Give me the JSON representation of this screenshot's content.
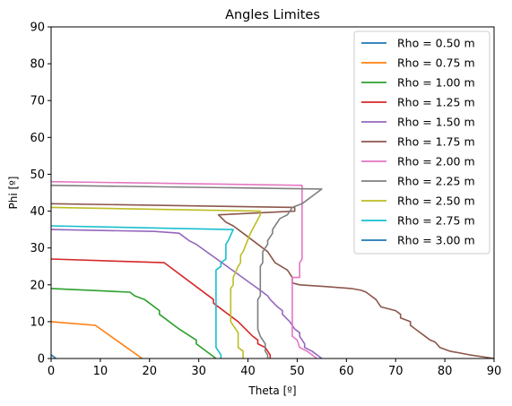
{
  "chart_data": {
    "type": "line",
    "title": "Angles Limites",
    "xlabel": "Theta [º]",
    "ylabel": "Phi [º]",
    "xlim": [
      0,
      90
    ],
    "ylim": [
      0,
      90
    ],
    "xticks": [
      0,
      10,
      20,
      30,
      40,
      50,
      60,
      70,
      80,
      90
    ],
    "yticks": [
      0,
      10,
      20,
      30,
      40,
      50,
      60,
      70,
      80,
      90
    ],
    "grid": false,
    "legend_position": "top-right",
    "series": [
      {
        "name": "Rho = 0.50 m",
        "color": "#1f77b4",
        "points": [
          [
            0,
            1
          ],
          [
            1,
            0
          ]
        ]
      },
      {
        "name": "Rho = 0.75 m",
        "color": "#ff7f0e",
        "points": [
          [
            0,
            10
          ],
          [
            9,
            9
          ],
          [
            18.5,
            0
          ]
        ]
      },
      {
        "name": "Rho = 1.00 m",
        "color": "#2ca02c",
        "points": [
          [
            0,
            19
          ],
          [
            16,
            18
          ],
          [
            17,
            17
          ],
          [
            19,
            16
          ],
          [
            22,
            13
          ],
          [
            22,
            12
          ],
          [
            26,
            8
          ],
          [
            29.5,
            5
          ],
          [
            29.5,
            4
          ],
          [
            33.5,
            0
          ]
        ]
      },
      {
        "name": "Rho = 1.25 m",
        "color": "#d62728",
        "points": [
          [
            0,
            27
          ],
          [
            23,
            26
          ],
          [
            33,
            16
          ],
          [
            33,
            15
          ],
          [
            37,
            11
          ],
          [
            38,
            10
          ],
          [
            41,
            6
          ],
          [
            42,
            5
          ],
          [
            42,
            4
          ],
          [
            43.5,
            3
          ],
          [
            44,
            2
          ],
          [
            44.5,
            1
          ],
          [
            44.5,
            0
          ]
        ]
      },
      {
        "name": "Rho = 1.50 m",
        "color": "#9467bd",
        "points": [
          [
            0,
            35
          ],
          [
            21,
            34.5
          ],
          [
            26,
            34
          ],
          [
            28,
            32
          ],
          [
            29.5,
            31
          ],
          [
            42,
            19
          ],
          [
            44,
            17
          ],
          [
            44.5,
            16
          ],
          [
            46,
            14
          ],
          [
            47,
            13
          ],
          [
            47,
            12
          ],
          [
            48.5,
            10
          ],
          [
            49.5,
            8
          ],
          [
            50.5,
            7
          ],
          [
            50.5,
            6
          ],
          [
            51.5,
            4
          ],
          [
            51.5,
            3
          ],
          [
            53,
            2
          ],
          [
            54,
            1
          ],
          [
            55,
            0
          ]
        ]
      },
      {
        "name": "Rho = 1.75 m",
        "color": "#8c564b",
        "points": [
          [
            0,
            42
          ],
          [
            49.5,
            41
          ],
          [
            49.5,
            40
          ],
          [
            34,
            39
          ],
          [
            35.5,
            37
          ],
          [
            37,
            36
          ],
          [
            39,
            34
          ],
          [
            40,
            33
          ],
          [
            43,
            30
          ],
          [
            44,
            29
          ],
          [
            45,
            27
          ],
          [
            45.5,
            26
          ],
          [
            48,
            24
          ],
          [
            49,
            22
          ],
          [
            49,
            20.5
          ],
          [
            50.5,
            20
          ],
          [
            56,
            19.5
          ],
          [
            61,
            19
          ],
          [
            63,
            18.5
          ],
          [
            64,
            18
          ],
          [
            65,
            17
          ],
          [
            66,
            16
          ],
          [
            67,
            14
          ],
          [
            70,
            13
          ],
          [
            71,
            12
          ],
          [
            71,
            11
          ],
          [
            73,
            10
          ],
          [
            73,
            9
          ],
          [
            74,
            8
          ],
          [
            76,
            6
          ],
          [
            77,
            5
          ],
          [
            78,
            4.5
          ],
          [
            79,
            3
          ],
          [
            81,
            2
          ],
          [
            85,
            1
          ],
          [
            90,
            0
          ]
        ]
      },
      {
        "name": "Rho = 2.00 m",
        "color": "#e377c2",
        "points": [
          [
            0,
            48
          ],
          [
            51,
            47
          ],
          [
            51,
            27
          ],
          [
            50.5,
            26
          ],
          [
            50.5,
            22
          ],
          [
            49,
            22
          ],
          [
            49,
            6
          ],
          [
            50,
            5
          ],
          [
            50.5,
            3
          ],
          [
            52,
            2
          ],
          [
            53,
            1
          ],
          [
            54,
            0
          ]
        ]
      },
      {
        "name": "Rho = 2.25 m",
        "color": "#7f7f7f",
        "points": [
          [
            0,
            47
          ],
          [
            55,
            46
          ],
          [
            51,
            42
          ],
          [
            49,
            41
          ],
          [
            48,
            39
          ],
          [
            46.5,
            38
          ],
          [
            45.5,
            36
          ],
          [
            45,
            35
          ],
          [
            45,
            34
          ],
          [
            44,
            32
          ],
          [
            44,
            31
          ],
          [
            43,
            29
          ],
          [
            43,
            26
          ],
          [
            42.5,
            25
          ],
          [
            42.5,
            17
          ],
          [
            42,
            16
          ],
          [
            42,
            8
          ],
          [
            42.5,
            6
          ],
          [
            43.5,
            4
          ],
          [
            43.5,
            2
          ],
          [
            44,
            1
          ],
          [
            44,
            0
          ]
        ]
      },
      {
        "name": "Rho = 2.50 m",
        "color": "#bcbd22",
        "points": [
          [
            0,
            41
          ],
          [
            42.5,
            40
          ],
          [
            42.5,
            39
          ],
          [
            40.5,
            34
          ],
          [
            39,
            29
          ],
          [
            38.5,
            28
          ],
          [
            38.5,
            26
          ],
          [
            38,
            25
          ],
          [
            37,
            22
          ],
          [
            37,
            20
          ],
          [
            36.5,
            19
          ],
          [
            36.5,
            10
          ],
          [
            38,
            7
          ],
          [
            38,
            3
          ],
          [
            39,
            2
          ],
          [
            39,
            0
          ]
        ]
      },
      {
        "name": "Rho = 2.75 m",
        "color": "#17becf",
        "points": [
          [
            0,
            36
          ],
          [
            36,
            35
          ],
          [
            37,
            35
          ],
          [
            36,
            32
          ],
          [
            35.5,
            31
          ],
          [
            35.5,
            27
          ],
          [
            34.5,
            26
          ],
          [
            34.5,
            25
          ],
          [
            33.5,
            24
          ],
          [
            33.5,
            3
          ],
          [
            34,
            2
          ],
          [
            34.5,
            1
          ],
          [
            34.5,
            0
          ]
        ]
      },
      {
        "name": "Rho = 3.00 m",
        "color": "#1f77b4",
        "points": []
      }
    ]
  }
}
